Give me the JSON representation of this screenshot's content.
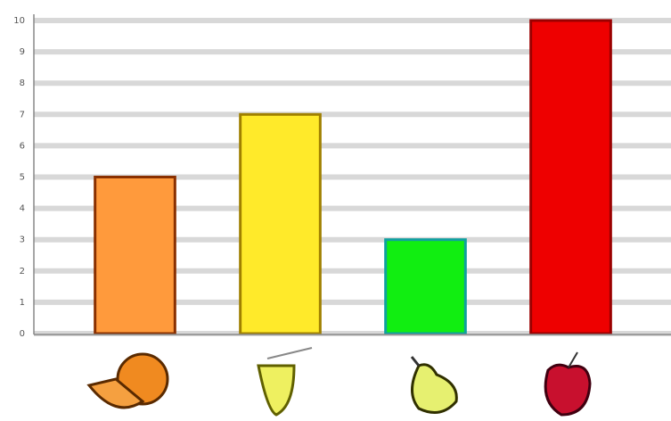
{
  "chart_data": {
    "type": "bar",
    "categories": [
      null,
      null,
      null,
      null
    ],
    "values": [
      5,
      7,
      3,
      10
    ],
    "colors": [
      "#ff9a3c",
      "#ffea2a",
      "#11ee11",
      "#ee0000"
    ],
    "edge_colors": [
      "#8a3000",
      "#a08000",
      "#10a0a0",
      "#9a0000"
    ],
    "ylim": [
      0,
      10
    ],
    "yticks": [
      0,
      1,
      2,
      3,
      4,
      5,
      6,
      7,
      8,
      9,
      10
    ],
    "grid": true
  }
}
